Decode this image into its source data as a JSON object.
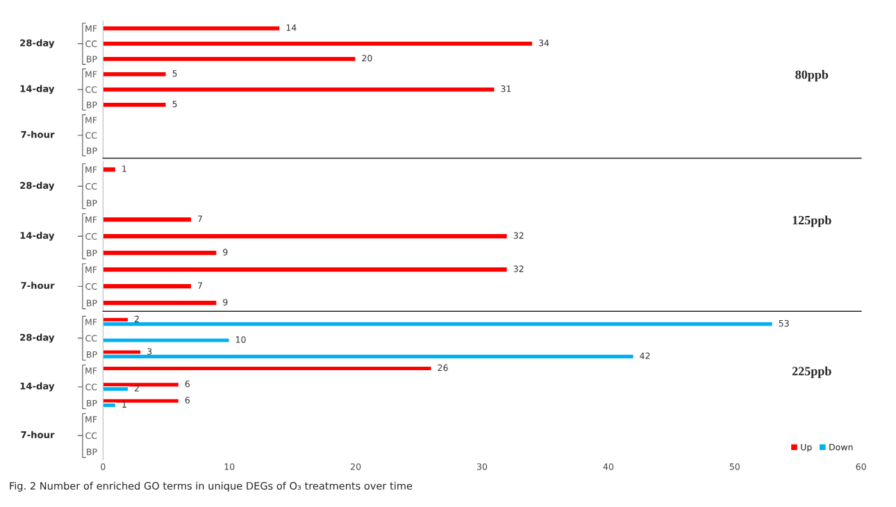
{
  "chart_data": [
    {
      "type": "bar",
      "orientation": "horizontal",
      "title": "80ppb",
      "categories": [
        "MF",
        "CC",
        "BP",
        "MF",
        "CC",
        "BP",
        "MF",
        "CC",
        "BP"
      ],
      "annotations": [
        "28-day",
        "14-day",
        "7-hour"
      ],
      "series": [
        {
          "color": "#ff0000",
          "values": [
            14,
            34,
            20,
            5,
            31,
            5,
            null,
            null,
            null
          ]
        }
      ],
      "xlim": [
        0,
        60
      ],
      "xticks": [
        0,
        10,
        20,
        30,
        40,
        50,
        60
      ],
      "tick_labels": "y",
      "data_labels": true
    },
    {
      "type": "bar",
      "orientation": "horizontal",
      "title": "125ppb",
      "categories": [
        "MF",
        "CC",
        "BP",
        "MF",
        "CC",
        "BP",
        "MF",
        "CC",
        "BP"
      ],
      "annotations": [
        "28-day",
        "14-day",
        "7-hour"
      ],
      "series": [
        {
          "color": "#ff0000",
          "values": [
            1,
            null,
            null,
            7,
            32,
            9,
            32,
            7,
            9
          ]
        }
      ],
      "xlim": [
        0,
        60
      ],
      "xticks": [
        0,
        10,
        20,
        30,
        40,
        50,
        60
      ],
      "tick_labels": "y",
      "data_labels": true
    },
    {
      "type": "bar",
      "orientation": "horizontal",
      "title": "225ppb",
      "categories": [
        "MF",
        "CC",
        "BP",
        "MF",
        "CC",
        "BP",
        "MF",
        "CC",
        "BP"
      ],
      "annotations": [
        "28-day",
        "14-day",
        "7-hour",
        "Fig. 2 Number of enriched GO terms in unique DEGs of O₃ treatments over time"
      ],
      "series": [
        {
          "name": "Up",
          "color": "#ff0000",
          "values": [
            2,
            null,
            3,
            26,
            6,
            6,
            null,
            null,
            null
          ]
        },
        {
          "name": "Down",
          "color": "#00b0f0",
          "values": [
            53,
            10,
            42,
            null,
            2,
            1,
            null,
            null,
            null
          ]
        }
      ],
      "xlim": [
        0,
        60
      ],
      "xticks": [
        0,
        10,
        20,
        30,
        40,
        50,
        60
      ],
      "legend": "bottom right",
      "data_labels": true
    }
  ]
}
